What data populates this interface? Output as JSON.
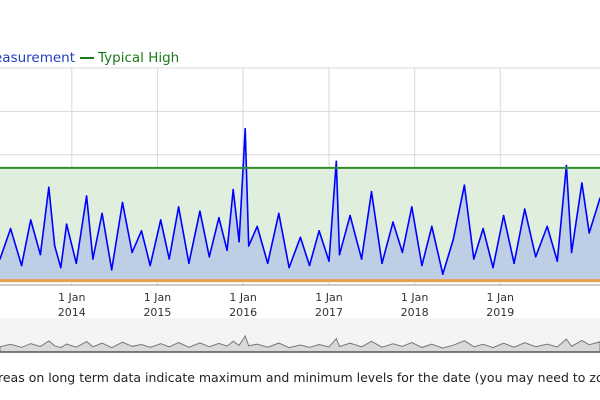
{
  "legend": {
    "measurement_label": "easurement",
    "typical_high_label": "Typical High"
  },
  "footnote": "reas on long term data indicate maximum and minimum levels for the date (you may need to zoom in to",
  "colors": {
    "measurement": "#0000ff",
    "typical_high": "#2e8b2e",
    "typical_high_band": "#dfeedd",
    "typical_low": "#e8a050",
    "navigator_fill": "#d9d9d9",
    "gridline": "#d8d8d8"
  },
  "chart_data": {
    "type": "line",
    "title": "",
    "xlabel": "",
    "ylabel": "",
    "x_ticks": [
      {
        "day": "1 Jan",
        "year": "2014",
        "date": "2014-01-01"
      },
      {
        "day": "1 Jan",
        "year": "2015",
        "date": "2015-01-01"
      },
      {
        "day": "1 Jan",
        "year": "2016",
        "date": "2016-01-01"
      },
      {
        "day": "1 Jan",
        "year": "2017",
        "date": "2017-01-01"
      },
      {
        "day": "1 Jan",
        "year": "2018",
        "date": "2018-01-01"
      },
      {
        "day": "1 Jan",
        "year": "2019",
        "date": "2019-01-01"
      }
    ],
    "x_range": [
      "2013-03-01",
      "2020-03-01"
    ],
    "ylim": [
      0,
      100
    ],
    "typical_high": 54,
    "typical_low": 2,
    "grid": true,
    "legend_position": "top-left",
    "series": [
      {
        "key": "measurement",
        "values": [
          {
            "x": "2013-03-01",
            "y": 12
          },
          {
            "x": "2013-04-15",
            "y": 26
          },
          {
            "x": "2013-06-01",
            "y": 9
          },
          {
            "x": "2013-07-10",
            "y": 30
          },
          {
            "x": "2013-08-20",
            "y": 14
          },
          {
            "x": "2013-09-25",
            "y": 45
          },
          {
            "x": "2013-10-20",
            "y": 18
          },
          {
            "x": "2013-11-15",
            "y": 8
          },
          {
            "x": "2013-12-10",
            "y": 28
          },
          {
            "x": "2014-01-20",
            "y": 10
          },
          {
            "x": "2014-03-05",
            "y": 41
          },
          {
            "x": "2014-04-01",
            "y": 12
          },
          {
            "x": "2014-05-10",
            "y": 33
          },
          {
            "x": "2014-06-20",
            "y": 7
          },
          {
            "x": "2014-08-05",
            "y": 38
          },
          {
            "x": "2014-09-15",
            "y": 15
          },
          {
            "x": "2014-10-25",
            "y": 25
          },
          {
            "x": "2014-12-01",
            "y": 9
          },
          {
            "x": "2015-01-15",
            "y": 30
          },
          {
            "x": "2015-02-20",
            "y": 12
          },
          {
            "x": "2015-04-01",
            "y": 36
          },
          {
            "x": "2015-05-15",
            "y": 10
          },
          {
            "x": "2015-07-01",
            "y": 34
          },
          {
            "x": "2015-08-10",
            "y": 13
          },
          {
            "x": "2015-09-20",
            "y": 31
          },
          {
            "x": "2015-10-25",
            "y": 16
          },
          {
            "x": "2015-11-20",
            "y": 44
          },
          {
            "x": "2015-12-15",
            "y": 20
          },
          {
            "x": "2016-01-10",
            "y": 72
          },
          {
            "x": "2016-01-25",
            "y": 18
          },
          {
            "x": "2016-03-01",
            "y": 27
          },
          {
            "x": "2016-04-15",
            "y": 10
          },
          {
            "x": "2016-06-01",
            "y": 33
          },
          {
            "x": "2016-07-15",
            "y": 8
          },
          {
            "x": "2016-09-01",
            "y": 22
          },
          {
            "x": "2016-10-10",
            "y": 9
          },
          {
            "x": "2016-11-20",
            "y": 25
          },
          {
            "x": "2017-01-01",
            "y": 11
          },
          {
            "x": "2017-02-01",
            "y": 57
          },
          {
            "x": "2017-02-15",
            "y": 14
          },
          {
            "x": "2017-04-01",
            "y": 32
          },
          {
            "x": "2017-05-20",
            "y": 12
          },
          {
            "x": "2017-07-01",
            "y": 43
          },
          {
            "x": "2017-08-15",
            "y": 10
          },
          {
            "x": "2017-10-01",
            "y": 29
          },
          {
            "x": "2017-11-10",
            "y": 15
          },
          {
            "x": "2017-12-20",
            "y": 36
          },
          {
            "x": "2018-02-01",
            "y": 9
          },
          {
            "x": "2018-03-15",
            "y": 27
          },
          {
            "x": "2018-05-01",
            "y": 5
          },
          {
            "x": "2018-06-15",
            "y": 21
          },
          {
            "x": "2018-08-01",
            "y": 46
          },
          {
            "x": "2018-09-10",
            "y": 12
          },
          {
            "x": "2018-10-20",
            "y": 26
          },
          {
            "x": "2018-12-01",
            "y": 8
          },
          {
            "x": "2019-01-15",
            "y": 32
          },
          {
            "x": "2019-03-01",
            "y": 10
          },
          {
            "x": "2019-04-15",
            "y": 35
          },
          {
            "x": "2019-06-01",
            "y": 13
          },
          {
            "x": "2019-07-20",
            "y": 27
          },
          {
            "x": "2019-09-01",
            "y": 11
          },
          {
            "x": "2019-10-10",
            "y": 55
          },
          {
            "x": "2019-11-01",
            "y": 15
          },
          {
            "x": "2019-12-15",
            "y": 47
          },
          {
            "x": "2020-01-15",
            "y": 24
          },
          {
            "x": "2020-03-01",
            "y": 40
          }
        ]
      }
    ]
  }
}
